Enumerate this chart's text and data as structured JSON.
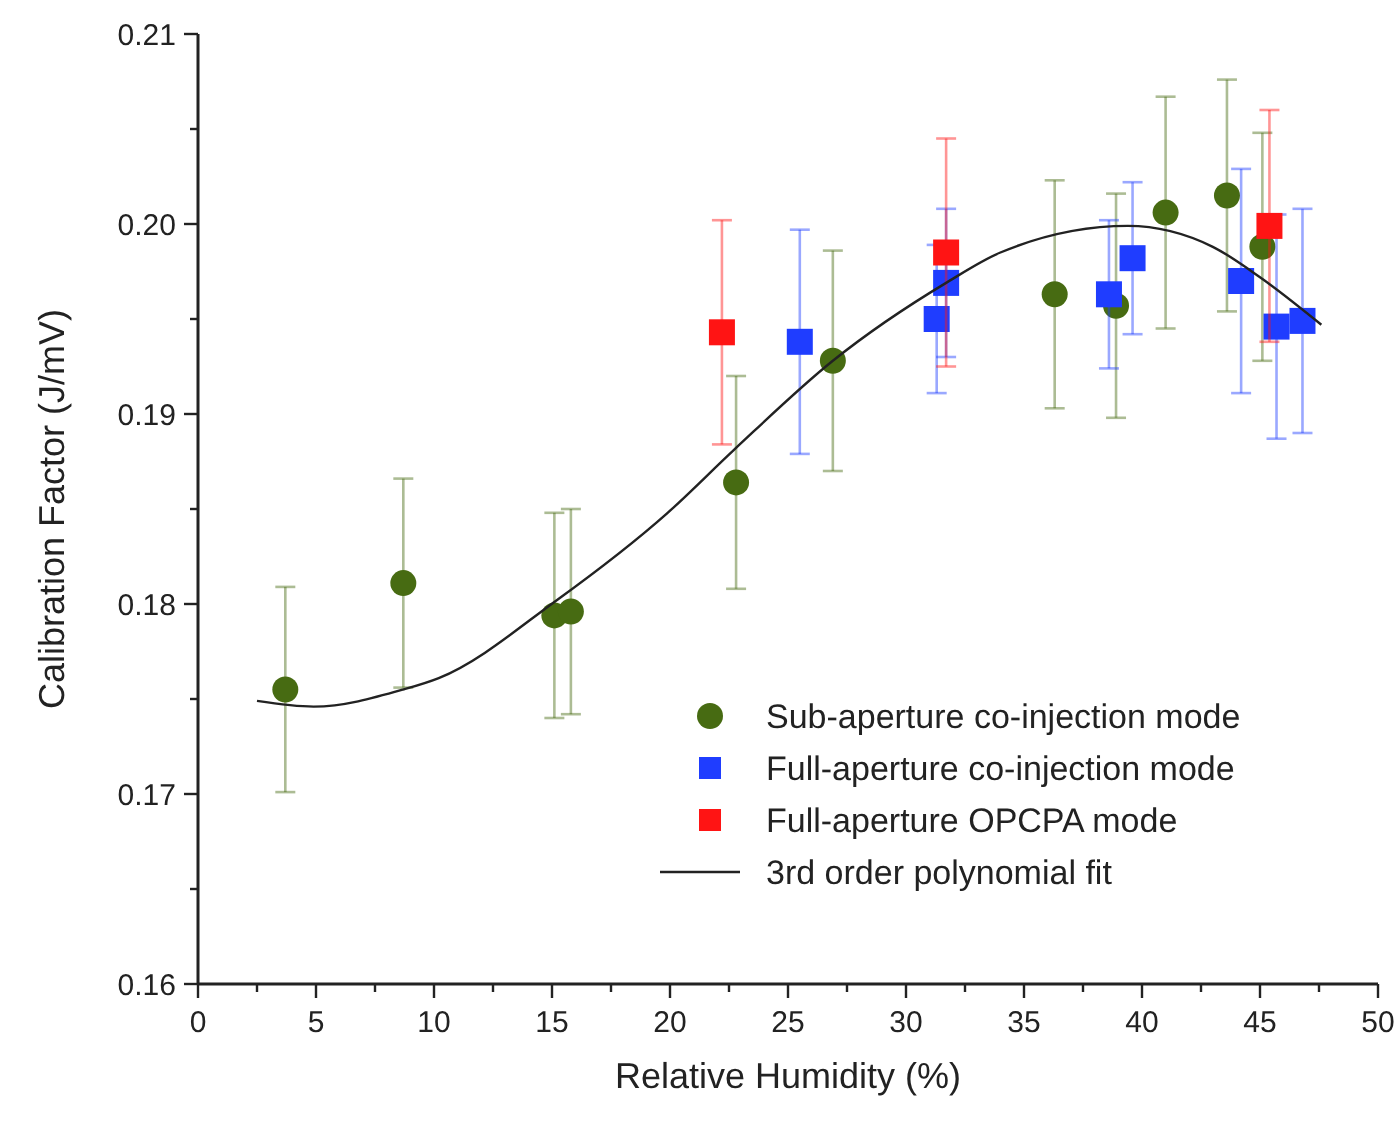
{
  "chart_data": {
    "type": "scatter",
    "xlabel": "Relative Humidity (%)",
    "ylabel": "Calibration Factor (J/mV)",
    "xlim": [
      0,
      50
    ],
    "xticks": [
      0,
      {
        "value": 2.5,
        "label": null
      },
      5,
      {
        "value": 7.5,
        "label": null
      },
      10,
      {
        "value": 12.5,
        "label": null
      },
      15,
      {
        "value": 17.5,
        "label": null
      },
      20,
      {
        "value": 22.5,
        "label": null
      },
      25,
      {
        "value": 27.5,
        "label": null
      },
      30,
      {
        "value": 32.5,
        "label": null
      },
      35,
      {
        "value": 37.5,
        "label": null
      },
      40,
      {
        "value": 42.5,
        "label": null
      },
      45,
      {
        "value": 47.5,
        "label": null
      },
      50
    ],
    "ylim": [
      0.16,
      0.21
    ],
    "yticks": [
      {
        "value": 0.16,
        "label": "0.16"
      },
      {
        "value": 0.165,
        "label": null
      },
      {
        "value": 0.17,
        "label": "0.17"
      },
      {
        "value": 0.175,
        "label": null
      },
      {
        "value": 0.18,
        "label": "0.18"
      },
      {
        "value": 0.185,
        "label": null
      },
      {
        "value": 0.19,
        "label": "0.19"
      },
      {
        "value": 0.195,
        "label": null
      },
      {
        "value": 0.2,
        "label": "0.20"
      },
      {
        "value": 0.205,
        "label": null
      },
      {
        "value": 0.21,
        "label": "0.21"
      }
    ],
    "grid": false,
    "legend": "bottom right",
    "series": [
      {
        "name": "Sub-aperture co-injection mode",
        "marker": "circle",
        "color": "#476b12",
        "x": [
          3.7,
          8.7,
          15.1,
          15.8,
          22.8,
          26.9,
          36.3,
          38.9,
          41.0,
          43.6,
          45.1
        ],
        "values": [
          0.1755,
          0.1811,
          0.1794,
          0.1796,
          0.1864,
          0.1928,
          0.1963,
          0.1957,
          0.2006,
          0.2015,
          0.1988
        ],
        "errors": [
          0.0054,
          0.0055,
          0.0054,
          0.0054,
          0.0056,
          0.0058,
          0.006,
          0.0059,
          0.0061,
          0.0061,
          0.006
        ]
      },
      {
        "name": "Full-aperture co-injection mode",
        "marker": "square",
        "color": "#1f3dff",
        "x": [
          25.5,
          31.3,
          31.7,
          38.6,
          39.6,
          44.2,
          45.7,
          46.8
        ],
        "values": [
          0.1938,
          0.195,
          0.1969,
          0.1963,
          0.1982,
          0.197,
          0.1946,
          0.1949
        ],
        "errors": [
          0.0059,
          0.0039,
          0.0039,
          0.0039,
          0.004,
          0.0059,
          0.0059,
          0.0059
        ]
      },
      {
        "name": "Full-aperture OPCPA mode",
        "marker": "square",
        "color": "#ff1414",
        "x": [
          22.2,
          31.7,
          45.4
        ],
        "values": [
          0.1943,
          0.1985,
          0.1999
        ],
        "errors": [
          0.0059,
          0.006,
          0.0061
        ]
      },
      {
        "name": "3rd order polynomial fit",
        "type": "line",
        "marker": "none",
        "line_style": "solid",
        "color": "#222222",
        "x": [
          2.5,
          4.9,
          8.7,
          10.2,
          15.2,
          19.9,
          22.7,
          26.9,
          31.7,
          34,
          39.4,
          43,
          45,
          47.6
        ],
        "values": [
          0.1749,
          0.1746,
          0.1755,
          0.1761,
          0.1802,
          0.1848,
          0.1881,
          0.1928,
          0.1969,
          0.1985,
          0.1999,
          0.1988,
          0.1972,
          0.1947
        ]
      }
    ]
  }
}
